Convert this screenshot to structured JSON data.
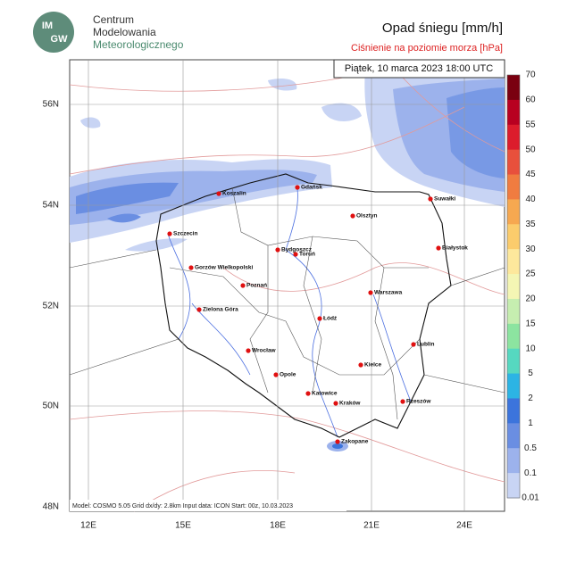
{
  "logo": {
    "badge": [
      "IM",
      "GW"
    ],
    "lines": [
      "Centrum",
      "Modelowania",
      "Meteorologicznego"
    ]
  },
  "header": {
    "title": "Opad śniegu [mm/h]",
    "subtitle": "Ciśnienie na poziomie morza [hPa]"
  },
  "map": {
    "valid_time": "Piątek, 10 marca 2023 18:00 UTC",
    "lon_labels": [
      "12E",
      "15E",
      "18E",
      "21E",
      "24E"
    ],
    "lat_labels": [
      "56N",
      "54N",
      "52N",
      "50N",
      "48N"
    ],
    "cities": [
      "Koszalin",
      "Gdańsk",
      "Suwałki",
      "Olsztyn",
      "Szczecin",
      "Bydgoszcz",
      "Toruń",
      "Białystok",
      "Gorzów Wielkopolski",
      "Poznań",
      "Warszawa",
      "Zielona Góra",
      "Łódź",
      "Lublin",
      "Wrocław",
      "Kielce",
      "Opole",
      "Katowice",
      "Kraków",
      "Rzeszów",
      "Zakopane"
    ],
    "footer": "Model: COSMO 5.05  Grid dx/dy: 2.8km  Input data: ICON  Start: 00z, 10.03.2023"
  },
  "colorbar": {
    "labels": [
      "70",
      "60",
      "55",
      "50",
      "45",
      "40",
      "35",
      "30",
      "25",
      "20",
      "15",
      "10",
      "5",
      "2",
      "1",
      "0.5",
      "0.1",
      "0.01"
    ],
    "colors": [
      "#7a0010",
      "#b80020",
      "#dc1c2c",
      "#e8503c",
      "#f07c40",
      "#f6a850",
      "#fbcc6c",
      "#fde89c",
      "#f4f6b4",
      "#c6eeb0",
      "#8ce4a0",
      "#56d8c0",
      "#2cb4e4",
      "#3c74dc",
      "#6a8ee2",
      "#9cb2ec",
      "#c8d4f4"
    ]
  }
}
